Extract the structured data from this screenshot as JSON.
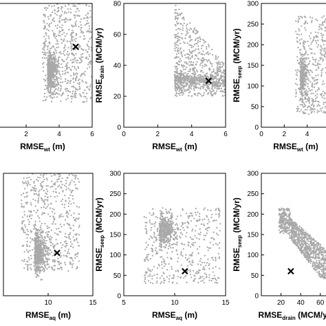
{
  "chart_data": [
    {
      "type": "scatter",
      "panel": "top-left",
      "xlabel": {
        "main": "RMSE",
        "sub": "wt",
        "unit": " (m)"
      },
      "ylabel": null,
      "xlim": [
        0,
        6
      ],
      "xticks": [
        "2",
        "4",
        "6"
      ],
      "ylim": null,
      "yticks": [],
      "marker": {
        "x": 5.0,
        "y": 0.65
      },
      "cloud": {
        "style": "rect",
        "x0": 3.0,
        "x1": 6.0,
        "y0": 0.2,
        "y1": 1.0,
        "n": 1050,
        "dense": [
          3.3,
          0.45
        ]
      }
    },
    {
      "type": "scatter",
      "panel": "top-middle",
      "xlabel": {
        "main": "RMSE",
        "sub": "wt",
        "unit": " (m)"
      },
      "ylabel": {
        "main": "RMSE",
        "sub": "drain",
        "unit": " (MCM/yr)"
      },
      "xlim": [
        0,
        6
      ],
      "xticks": [
        "0",
        "2",
        "4",
        "6"
      ],
      "ylim": [
        0,
        80
      ],
      "yticks": [
        "0",
        "20",
        "40",
        "60",
        "80"
      ],
      "marker": {
        "x": 5.0,
        "y": 30
      },
      "cloud": {
        "style": "funnel",
        "x0": 3.0,
        "x1": 6.0,
        "ybottom": 20,
        "ytop_left": 80,
        "ytop_right": 40,
        "n": 1000,
        "dense": [
          3.4,
          30
        ]
      }
    },
    {
      "type": "scatter",
      "panel": "top-right",
      "xlabel": {
        "main": "RMSE",
        "sub": "wt",
        "unit": " (m)"
      },
      "ylabel": {
        "main": "RMSE",
        "sub": "seep",
        "unit": " (MCM/yr)"
      },
      "xlim": [
        0,
        6
      ],
      "xticks": [
        "0",
        "2",
        "4"
      ],
      "ylim": [
        0,
        300
      ],
      "yticks": [
        "0",
        "50",
        "100",
        "150",
        "200",
        "250",
        "300"
      ],
      "marker": null,
      "cloud": {
        "style": "rect",
        "x0": 3.0,
        "x1": 6.0,
        "y0": 30,
        "y1": 270,
        "n": 700,
        "dense": [
          3.4,
          120
        ]
      }
    },
    {
      "type": "scatter",
      "panel": "bottom-left",
      "xlabel": {
        "main": "RMSE",
        "sub": "aq",
        "unit": " (m)"
      },
      "ylabel": null,
      "xlim": [
        5,
        15
      ],
      "xticks": [
        "10",
        "15"
      ],
      "ylim": null,
      "yticks": [],
      "marker": {
        "x": 11.0,
        "y": 0.35
      },
      "cloud": {
        "style": "rect",
        "x0": 7.0,
        "x1": 13.5,
        "y0": 0.2,
        "y1": 1.0,
        "n": 1050,
        "dense": [
          8.5,
          0.35
        ]
      }
    },
    {
      "type": "scatter",
      "panel": "bottom-middle",
      "xlabel": {
        "main": "RMSE",
        "sub": "aq",
        "unit": " (m)"
      },
      "ylabel": {
        "main": "RMSE",
        "sub": "seep",
        "unit": " (MCM/yr)"
      },
      "xlim": [
        5,
        15
      ],
      "xticks": [
        "5",
        "10",
        "15"
      ],
      "ylim": [
        0,
        300
      ],
      "yticks": [
        "0",
        "50",
        "100",
        "150",
        "200",
        "250",
        "300"
      ],
      "marker": {
        "x": 11.0,
        "y": 60
      },
      "cloud": {
        "style": "rect",
        "x0": 7.0,
        "x1": 14.5,
        "y0": 30,
        "y1": 215,
        "n": 850,
        "dense": [
          8.5,
          160
        ]
      }
    },
    {
      "type": "scatter",
      "panel": "bottom-right",
      "xlabel": {
        "main": "RMSE",
        "sub": "drain",
        "unit": " (MCM/yr)"
      },
      "ylabel": {
        "main": "RMSE",
        "sub": "seep",
        "unit": " (MCM/yr)"
      },
      "xlim": [
        0,
        70
      ],
      "xticks": [
        "20",
        "40",
        "60"
      ],
      "ylim": [
        0,
        300
      ],
      "yticks": [
        "0",
        "50",
        "100",
        "150",
        "200",
        "250",
        "300"
      ],
      "marker": {
        "x": 30,
        "y": 60
      },
      "cloud": {
        "style": "band",
        "x0": 18,
        "x1": 70,
        "n": 1000
      }
    }
  ]
}
